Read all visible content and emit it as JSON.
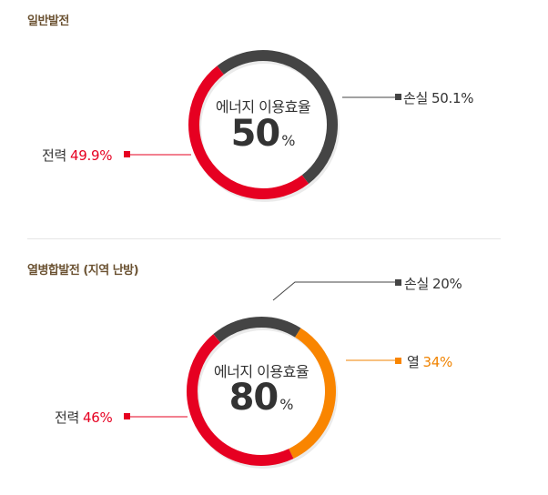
{
  "colors": {
    "power": "#e60021",
    "loss": "#444444",
    "heat": "#f98500",
    "title": "#6b5232",
    "connector_red": "#e60021",
    "connector_dark": "#444444",
    "connector_orange": "#f08300"
  },
  "sections": [
    {
      "title": "일반발전",
      "center_label": "에너지 이용효율",
      "center_value": "50",
      "center_unit": "%",
      "segments": [
        {
          "label": "전력",
          "value_text": "49.9%",
          "value": 49.9,
          "color": "#e60021"
        },
        {
          "label": "손실",
          "value_text": "50.1%",
          "value": 50.1,
          "color": "#444444"
        }
      ]
    },
    {
      "title": "열병합발전 (지역 난방)",
      "center_label": "에너지 이용효율",
      "center_value": "80",
      "center_unit": "%",
      "segments": [
        {
          "label": "전력",
          "value_text": "46%",
          "value": 46,
          "color": "#e60021"
        },
        {
          "label": "손실",
          "value_text": "20%",
          "value": 20,
          "color": "#444444"
        },
        {
          "label": "열",
          "value_text": "34%",
          "value": 34,
          "color": "#f98500"
        }
      ]
    }
  ]
}
